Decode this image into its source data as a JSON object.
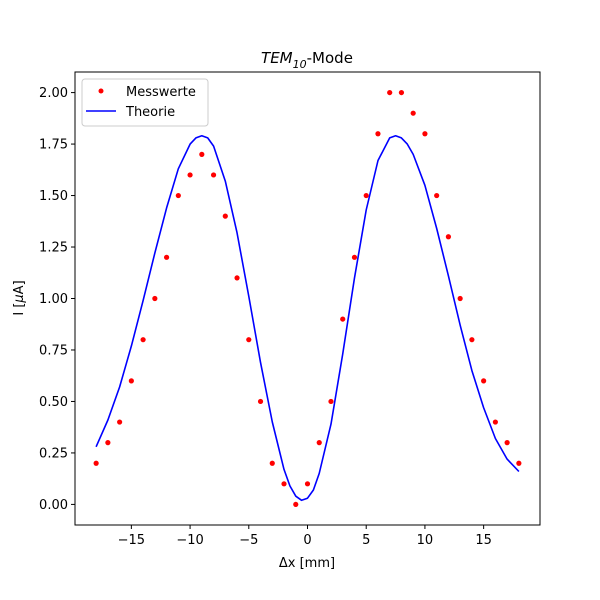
{
  "chart_data": {
    "type": "scatter",
    "title_main": "TEM",
    "title_sub": "10",
    "title_suffix": "-Mode",
    "xlabel": "Δx [mm]",
    "ylabel_prefix": "I [",
    "ylabel_mu": "μ",
    "ylabel_suffix": "A]",
    "xlim": [
      -19.8,
      19.8
    ],
    "ylim": [
      -0.1,
      2.1
    ],
    "x_ticks": [
      -15,
      -10,
      -5,
      0,
      5,
      10,
      15
    ],
    "x_tick_labels": [
      "−15",
      "−10",
      "−5",
      "0",
      "5",
      "10",
      "15"
    ],
    "y_ticks": [
      0.0,
      0.25,
      0.5,
      0.75,
      1.0,
      1.25,
      1.5,
      1.75,
      2.0
    ],
    "y_tick_labels": [
      "0.00",
      "0.25",
      "0.50",
      "0.75",
      "1.00",
      "1.25",
      "1.50",
      "1.75",
      "2.00"
    ],
    "grid": false,
    "legend_position": "upper-left",
    "legend": [
      {
        "label": "Messwerte",
        "kind": "marker",
        "color": "#ff0000"
      },
      {
        "label": "Theorie",
        "kind": "line",
        "color": "#0000ff"
      }
    ],
    "series": [
      {
        "name": "Messwerte",
        "kind": "scatter",
        "color": "#ff0000",
        "x": [
          -18,
          -17,
          -16,
          -15,
          -14,
          -13,
          -12,
          -11,
          -10,
          -9,
          -8,
          -7,
          -6,
          -5,
          -4,
          -3,
          -2,
          -1,
          0,
          1,
          2,
          3,
          4,
          5,
          6,
          7,
          8,
          9,
          10,
          11,
          12,
          13,
          14,
          15,
          16,
          17,
          18
        ],
        "y": [
          0.2,
          0.3,
          0.4,
          0.6,
          0.8,
          1.0,
          1.2,
          1.5,
          1.6,
          1.7,
          1.6,
          1.4,
          1.1,
          0.8,
          0.5,
          0.2,
          0.1,
          0.0,
          0.1,
          0.3,
          0.5,
          0.9,
          1.2,
          1.5,
          1.8,
          2.0,
          2.0,
          1.9,
          1.8,
          1.5,
          1.3,
          1.0,
          0.8,
          0.6,
          0.4,
          0.3,
          0.2
        ]
      },
      {
        "name": "Theorie",
        "kind": "line",
        "color": "#0000ff",
        "x": [
          -18,
          -17,
          -16,
          -15,
          -14,
          -13,
          -12,
          -11,
          -10,
          -9.5,
          -9,
          -8.5,
          -8,
          -7,
          -6,
          -5,
          -4,
          -3,
          -2,
          -1.5,
          -1,
          -0.5,
          0,
          0.5,
          1,
          2,
          3,
          4,
          5,
          6,
          7,
          7.5,
          8,
          8.5,
          9,
          10,
          11,
          12,
          13,
          14,
          15,
          16,
          17,
          18
        ],
        "y": [
          0.28,
          0.41,
          0.57,
          0.77,
          0.99,
          1.22,
          1.44,
          1.63,
          1.75,
          1.78,
          1.79,
          1.78,
          1.74,
          1.57,
          1.32,
          1.01,
          0.69,
          0.4,
          0.17,
          0.09,
          0.04,
          0.02,
          0.03,
          0.07,
          0.15,
          0.39,
          0.73,
          1.1,
          1.43,
          1.67,
          1.78,
          1.79,
          1.78,
          1.75,
          1.7,
          1.55,
          1.34,
          1.11,
          0.87,
          0.65,
          0.47,
          0.32,
          0.22,
          0.16
        ]
      }
    ]
  }
}
